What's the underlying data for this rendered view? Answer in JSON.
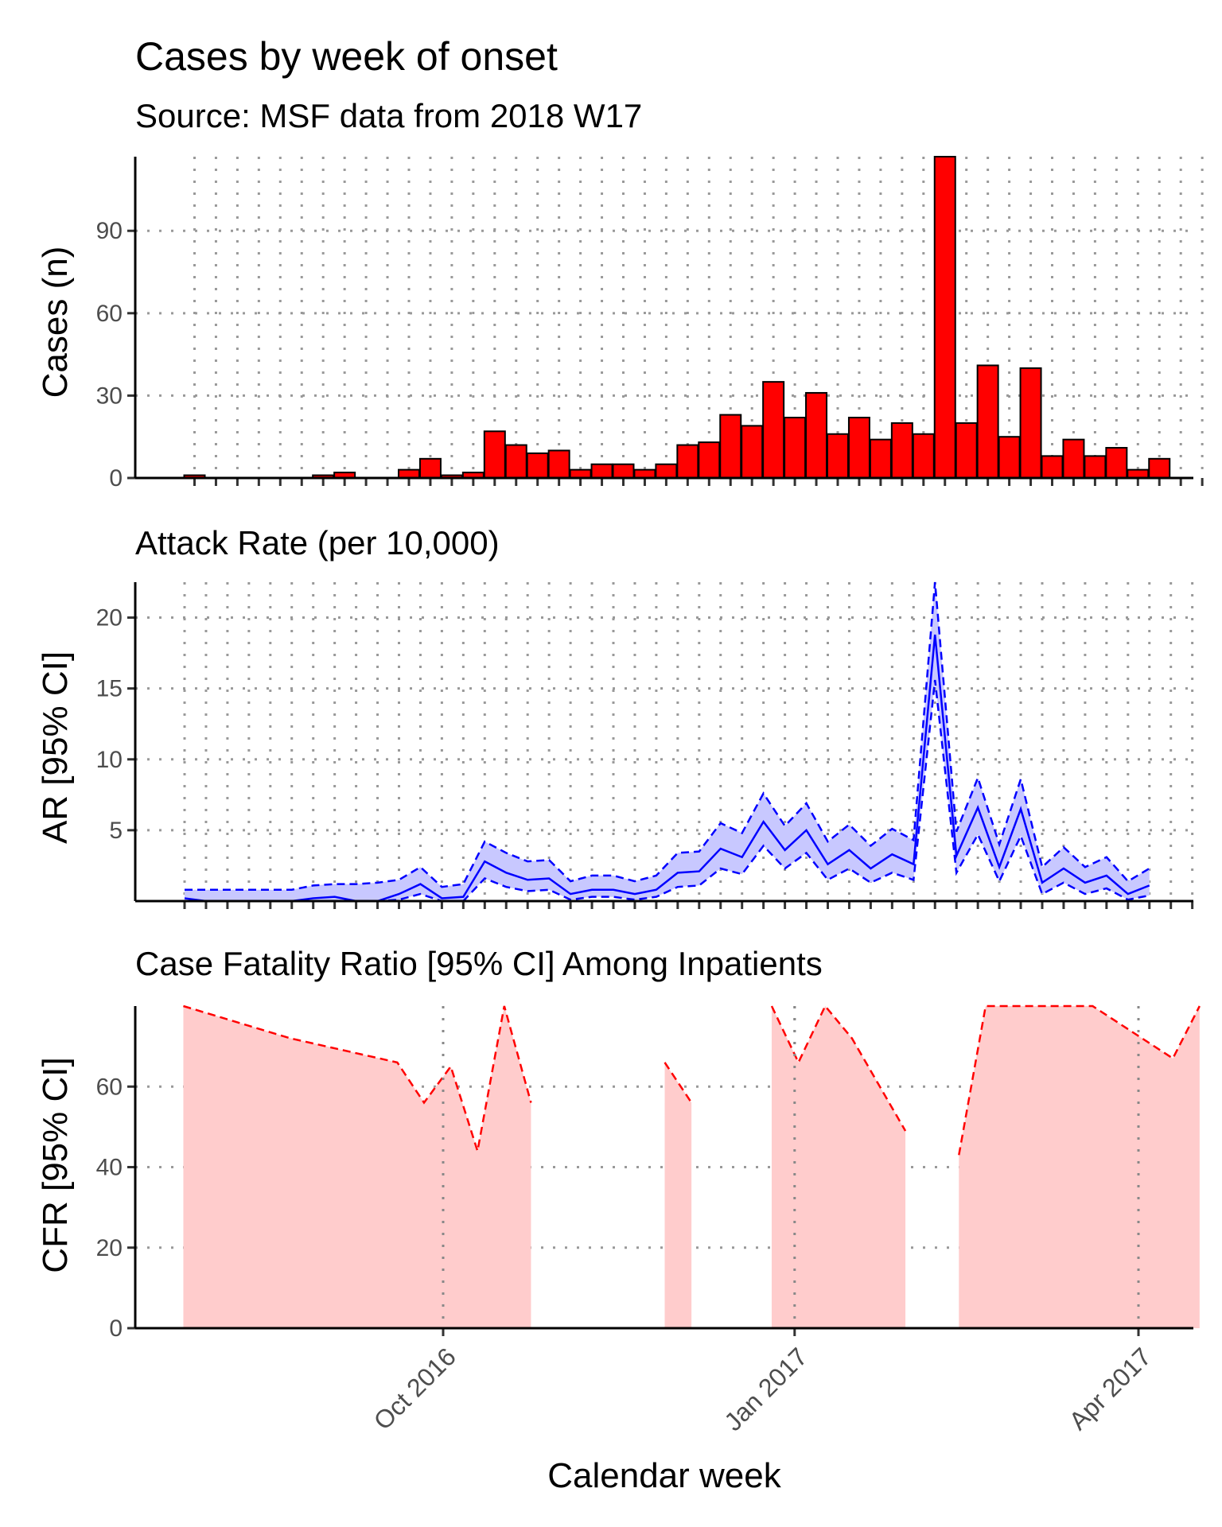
{
  "chart_data": [
    {
      "type": "bar",
      "title": "Cases by week of onset",
      "subtitle": "Source: MSF data from 2018 W17",
      "ylabel": "Cases (n)",
      "xlabel": "",
      "ylim": [
        0,
        117
      ],
      "yticks": [
        0,
        30,
        60,
        90
      ],
      "weeks": [
        "2016-07-04",
        "2016-07-11",
        "2016-07-18",
        "2016-07-25",
        "2016-08-01",
        "2016-08-08",
        "2016-08-15",
        "2016-08-22",
        "2016-08-29",
        "2016-09-05",
        "2016-09-12",
        "2016-09-19",
        "2016-09-26",
        "2016-10-03",
        "2016-10-10",
        "2016-10-17",
        "2016-10-24",
        "2016-10-31",
        "2016-11-07",
        "2016-11-14",
        "2016-11-21",
        "2016-11-28",
        "2016-12-05",
        "2016-12-12",
        "2016-12-19",
        "2016-12-26",
        "2017-01-02",
        "2017-01-09",
        "2017-01-16",
        "2017-01-23",
        "2017-01-30",
        "2017-02-06",
        "2017-02-13",
        "2017-02-20",
        "2017-02-27",
        "2017-03-06",
        "2017-03-13",
        "2017-03-20",
        "2017-03-27",
        "2017-04-03",
        "2017-04-10",
        "2017-04-17",
        "2017-04-24",
        "2017-05-01",
        "2017-05-08",
        "2017-05-15",
        "2017-05-22",
        "2017-05-29"
      ],
      "values": [
        1,
        0,
        0,
        0,
        0,
        0,
        1,
        2,
        0,
        0,
        3,
        7,
        1,
        2,
        17,
        12,
        9,
        10,
        3,
        5,
        5,
        3,
        5,
        12,
        13,
        23,
        19,
        35,
        22,
        31,
        16,
        22,
        14,
        20,
        16,
        117,
        20,
        41,
        15,
        40,
        8,
        14,
        8,
        11,
        3,
        7,
        0,
        0
      ],
      "bar_color": "#ff0000",
      "grid": "dotted major grid, x and y"
    },
    {
      "type": "line",
      "title": "Attack Rate (per 10,000)",
      "ylabel": "AR [95% CI]",
      "xlabel": "",
      "ylim": [
        0,
        22.5
      ],
      "yticks": [
        5,
        10,
        15,
        20
      ],
      "weeks": [
        "2016-07-04",
        "2016-07-11",
        "2016-07-18",
        "2016-07-25",
        "2016-08-01",
        "2016-08-08",
        "2016-08-15",
        "2016-08-22",
        "2016-08-29",
        "2016-09-05",
        "2016-09-12",
        "2016-09-19",
        "2016-09-26",
        "2016-10-03",
        "2016-10-10",
        "2016-10-17",
        "2016-10-24",
        "2016-10-31",
        "2016-11-07",
        "2016-11-14",
        "2016-11-21",
        "2016-11-28",
        "2016-12-05",
        "2016-12-12",
        "2016-12-19",
        "2016-12-26",
        "2017-01-02",
        "2017-01-09",
        "2017-01-16",
        "2017-01-23",
        "2017-01-30",
        "2017-02-06",
        "2017-02-13",
        "2017-02-20",
        "2017-02-27",
        "2017-03-06",
        "2017-03-13",
        "2017-03-20",
        "2017-03-27",
        "2017-04-03",
        "2017-04-10",
        "2017-04-17",
        "2017-04-24",
        "2017-05-01",
        "2017-05-08",
        "2017-05-15"
      ],
      "estimate": [
        0.2,
        0.0,
        0.0,
        0.0,
        0.0,
        0.0,
        0.2,
        0.3,
        0.0,
        0.0,
        0.5,
        1.2,
        0.2,
        0.3,
        2.8,
        2.0,
        1.5,
        1.6,
        0.5,
        0.8,
        0.8,
        0.5,
        0.8,
        2.0,
        2.1,
        3.7,
        3.1,
        5.6,
        3.6,
        5.0,
        2.6,
        3.6,
        2.3,
        3.3,
        2.6,
        18.8,
        3.2,
        6.6,
        2.4,
        6.5,
        1.3,
        2.3,
        1.3,
        1.8,
        0.5,
        1.1
      ],
      "lower": [
        0.0,
        0.0,
        0.0,
        0.0,
        0.0,
        0.0,
        0.0,
        0.0,
        0.0,
        0.0,
        0.1,
        0.5,
        0.0,
        0.0,
        1.6,
        1.0,
        0.7,
        0.8,
        0.1,
        0.3,
        0.3,
        0.1,
        0.3,
        1.0,
        1.1,
        2.3,
        1.9,
        3.9,
        2.3,
        3.4,
        1.5,
        2.3,
        1.3,
        2.0,
        1.5,
        15.6,
        2.0,
        4.7,
        1.4,
        4.6,
        0.5,
        1.3,
        0.5,
        0.9,
        0.1,
        0.4
      ],
      "upper": [
        0.8,
        0.8,
        0.8,
        0.8,
        0.8,
        0.8,
        1.1,
        1.2,
        1.2,
        1.3,
        1.5,
        2.4,
        1.0,
        1.2,
        4.2,
        3.4,
        2.8,
        2.9,
        1.4,
        1.8,
        1.8,
        1.4,
        1.8,
        3.4,
        3.5,
        5.5,
        4.8,
        7.6,
        5.3,
        6.9,
        4.2,
        5.4,
        3.9,
        5.1,
        4.3,
        22.5,
        4.9,
        8.7,
        4.0,
        8.6,
        2.4,
        3.8,
        2.4,
        3.1,
        1.4,
        2.3
      ],
      "line_color": "#0000ff",
      "band_color": "#c8c8ff",
      "grid": "dotted major grid, x and y"
    },
    {
      "type": "area",
      "title": "Case Fatality Ratio [95% CI] Among Inpatients",
      "ylabel": "CFR [95% CI]",
      "xlabel": "Calendar week",
      "ylim": [
        0,
        80
      ],
      "yticks": [
        0,
        20,
        40,
        60
      ],
      "x_date_range": [
        "2016-07-04",
        "2017-05-29"
      ],
      "x_ticks": [
        {
          "date": "2016-10-01",
          "label": "Oct 2016"
        },
        {
          "date": "2017-01-01",
          "label": "Jan 2017"
        },
        {
          "date": "2017-04-01",
          "label": "Apr 2017"
        }
      ],
      "segments": [
        {
          "points": [
            [
              "2016-07-25",
              80
            ],
            [
              "2016-08-22",
              72
            ],
            [
              "2016-09-19",
              66
            ],
            [
              "2016-09-26",
              56
            ],
            [
              "2016-10-03",
              65
            ],
            [
              "2016-10-10",
              44
            ],
            [
              "2016-10-17",
              80
            ],
            [
              "2016-10-24",
              56
            ]
          ]
        },
        {
          "points": [
            [
              "2016-11-28",
              66
            ],
            [
              "2016-12-05",
              56
            ]
          ]
        },
        {
          "points": [
            [
              "2016-12-26",
              80
            ],
            [
              "2017-01-02",
              66
            ],
            [
              "2017-01-09",
              80
            ],
            [
              "2017-01-16",
              72
            ],
            [
              "2017-01-30",
              49
            ]
          ]
        },
        {
          "points": [
            [
              "2017-02-13",
              43
            ],
            [
              "2017-02-20",
              80
            ],
            [
              "2017-03-20",
              80
            ],
            [
              "2017-04-10",
              67
            ],
            [
              "2017-04-17",
              80
            ]
          ]
        }
      ],
      "line_color": "#ff0000",
      "fill_color": "#ffcccc",
      "grid": "dotted major grid, x and y"
    }
  ]
}
